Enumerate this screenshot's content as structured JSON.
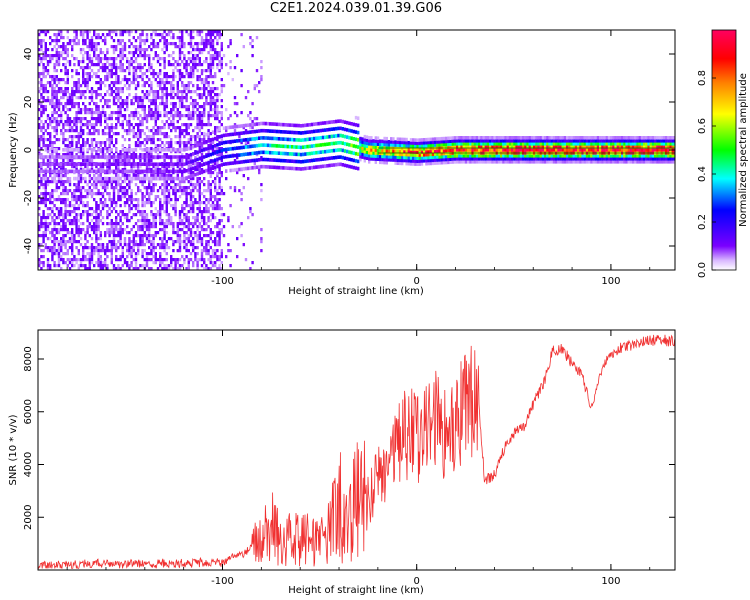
{
  "title": "C2E1.2024.039.01.39.G06",
  "colors": {
    "snr_line": "#f03030",
    "spectrogram_noise": "#8a2be2",
    "carrier": "#ff2020"
  },
  "colorbar": {
    "label": "Normalized spectral amplitude",
    "ticks": [
      "0.0",
      "0.2",
      "0.4",
      "0.6",
      "0.8"
    ],
    "range": [
      0,
      1
    ],
    "colormap": "hsv-rainbow (violet → blue → cyan → green → yellow → orange → red → magenta)"
  },
  "chart_data": [
    {
      "type": "heatmap",
      "title": "",
      "xlabel": "Height of straight line (km)",
      "ylabel": "Frequency (Hz)",
      "xlim": [
        -195,
        133
      ],
      "ylim": [
        -50,
        50
      ],
      "xticks": [
        "-100",
        "0",
        "100"
      ],
      "yticks": [
        "-40",
        "-20",
        "0",
        "20",
        "40"
      ],
      "description_points": {
        "heights_km": [
          -195,
          -150,
          -120,
          -100,
          -80,
          -60,
          -40,
          -25,
          0,
          20,
          60,
          100,
          133
        ],
        "peak_frequency_hz": [
          -6,
          -6,
          -6,
          0,
          2,
          1,
          3,
          0,
          -1,
          0,
          0,
          0,
          0
        ],
        "peak_amplitude": [
          0.08,
          0.1,
          0.12,
          0.25,
          0.4,
          0.45,
          0.45,
          0.7,
          0.85,
          0.95,
          1.0,
          1.0,
          1.0
        ]
      }
    },
    {
      "type": "line",
      "title": "",
      "xlabel": "Height of straight line (km)",
      "ylabel": "SNR (10 * v/v)",
      "xlim": [
        -195,
        133
      ],
      "ylim": [
        0,
        9100
      ],
      "xticks": [
        "-100",
        "0",
        "100"
      ],
      "yticks": [
        "2000",
        "4000",
        "6000",
        "8000"
      ],
      "series": [
        {
          "x": [
            -195,
            -180,
            -160,
            -140,
            -120,
            -100,
            -90,
            -80,
            -75,
            -70,
            -60,
            -50,
            -45,
            -40,
            -35,
            -30,
            -25,
            -20,
            -15,
            -10,
            -5,
            0,
            5,
            10,
            15,
            20,
            25,
            30,
            32,
            35,
            40,
            45,
            50,
            55,
            60,
            65,
            70,
            75,
            80,
            85,
            90,
            95,
            100,
            105,
            110,
            115,
            120,
            125,
            133
          ],
          "y": [
            150,
            200,
            250,
            220,
            250,
            300,
            600,
            1200,
            1800,
            1000,
            1300,
            1000,
            1600,
            2400,
            2200,
            2800,
            2500,
            3600,
            4000,
            4800,
            5200,
            5000,
            5400,
            5600,
            5200,
            5800,
            6200,
            6400,
            6300,
            3400,
            3600,
            4600,
            5200,
            5400,
            6300,
            7000,
            8300,
            8400,
            7800,
            7400,
            6100,
            7600,
            8200,
            8400,
            8500,
            8600,
            8700,
            8700,
            8700
          ]
        }
      ]
    }
  ]
}
